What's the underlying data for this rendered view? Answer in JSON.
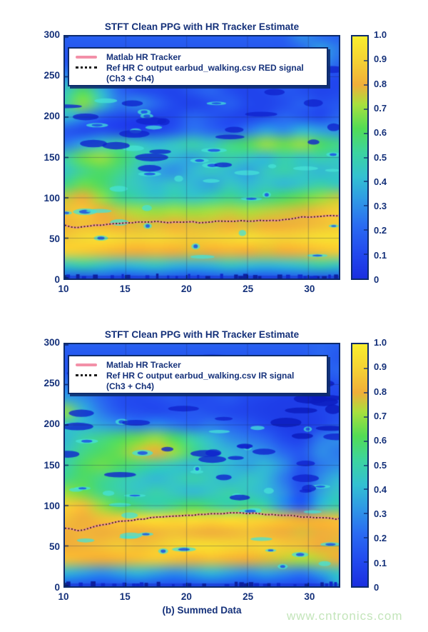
{
  "watermark": "www.cntronics.com",
  "caption": "(b) Summed Data",
  "style": {
    "text_color": "#15317a",
    "border_color": "#0d2b6b",
    "background": "#ffffff",
    "watermark_color": "#c3e5ba",
    "tracker_pink": "#f390a8",
    "tracker_dotted": "#2e1c08"
  },
  "colormap": [
    {
      "t": 0.0,
      "c": "#1a2fe0"
    },
    {
      "t": 0.1,
      "c": "#2148ee"
    },
    {
      "t": 0.22,
      "c": "#2a6cf2"
    },
    {
      "t": 0.32,
      "c": "#2f97e6"
    },
    {
      "t": 0.42,
      "c": "#33c0d2"
    },
    {
      "t": 0.52,
      "c": "#3cd4a0"
    },
    {
      "t": 0.62,
      "c": "#52dc55"
    },
    {
      "t": 0.72,
      "c": "#a8e03e"
    },
    {
      "t": 0.8,
      "c": "#f0ae3a"
    },
    {
      "t": 0.9,
      "c": "#f4d234"
    },
    {
      "t": 1.0,
      "c": "#f9ee2d"
    }
  ],
  "chart_data": [
    {
      "type": "heatmap",
      "title": "STFT Clean PPG with HR Tracker Estimate",
      "legend": [
        "Matlab HR Tracker",
        "Ref HR C output earbud_walking.csv RED signal",
        "(Ch3 + Ch4)"
      ],
      "xlim": [
        10,
        32.5
      ],
      "ylim": [
        0,
        300
      ],
      "xticks": [
        10,
        15,
        20,
        25,
        30
      ],
      "yticks": [
        300,
        250,
        200,
        150,
        100,
        50,
        0
      ],
      "colorbar_ticks": [
        "1.0",
        "0.9",
        "0.8",
        "0.7",
        "0.6",
        "0.5",
        "0.4",
        "0.3",
        "0.2",
        "0.1",
        "0"
      ],
      "colorbar_range": [
        0,
        1
      ],
      "grid": true,
      "values": [
        [
          0.18,
          0.18,
          0.18,
          0.18,
          0.18,
          0.18,
          0.18,
          0.18,
          0.18,
          0.18,
          0.18,
          0.18,
          0.18,
          0.3,
          0.22,
          0.18
        ],
        [
          0.15,
          0.15,
          0.15,
          0.15,
          0.15,
          0.15,
          0.15,
          0.15,
          0.15,
          0.15,
          0.15,
          0.15,
          0.15,
          0.2,
          0.35,
          0.25
        ],
        [
          0.15,
          0.15,
          0.15,
          0.15,
          0.15,
          0.15,
          0.15,
          0.15,
          0.15,
          0.15,
          0.15,
          0.15,
          0.15,
          0.18,
          0.3,
          0.2
        ],
        [
          0.3,
          0.25,
          0.2,
          0.15,
          0.12,
          0.15,
          0.18,
          0.15,
          0.12,
          0.1,
          0.12,
          0.15,
          0.18,
          0.15,
          0.12,
          0.1
        ],
        [
          0.45,
          0.6,
          0.4,
          0.2,
          0.12,
          0.1,
          0.08,
          0.15,
          0.2,
          0.12,
          0.08,
          0.1,
          0.15,
          0.12,
          0.08,
          0.1
        ],
        [
          0.5,
          0.68,
          0.45,
          0.25,
          0.3,
          0.2,
          0.1,
          0.07,
          0.12,
          0.18,
          0.1,
          0.08,
          0.12,
          0.18,
          0.12,
          0.15
        ],
        [
          0.4,
          0.3,
          0.15,
          0.1,
          0.07,
          0.07,
          0.1,
          0.2,
          0.15,
          0.1,
          0.08,
          0.12,
          0.2,
          0.15,
          0.1,
          0.2
        ],
        [
          0.15,
          0.1,
          0.12,
          0.08,
          0.06,
          0.08,
          0.15,
          0.25,
          0.2,
          0.15,
          0.25,
          0.35,
          0.3,
          0.4,
          0.35,
          0.3
        ],
        [
          0.25,
          0.35,
          0.45,
          0.5,
          0.45,
          0.4,
          0.45,
          0.5,
          0.45,
          0.55,
          0.6,
          0.7,
          0.65,
          0.7,
          0.6,
          0.55
        ],
        [
          0.5,
          0.65,
          0.7,
          0.6,
          0.5,
          0.45,
          0.4,
          0.35,
          0.45,
          0.5,
          0.45,
          0.4,
          0.5,
          0.45,
          0.5,
          0.45
        ],
        [
          0.45,
          0.55,
          0.6,
          0.55,
          0.45,
          0.35,
          0.3,
          0.4,
          0.45,
          0.4,
          0.35,
          0.45,
          0.5,
          0.45,
          0.4,
          0.45
        ],
        [
          0.55,
          0.65,
          0.6,
          0.5,
          0.45,
          0.4,
          0.45,
          0.4,
          0.35,
          0.45,
          0.4,
          0.45,
          0.4,
          0.45,
          0.5,
          0.45
        ],
        [
          0.75,
          0.8,
          0.7,
          0.55,
          0.5,
          0.45,
          0.5,
          0.45,
          0.5,
          0.55,
          0.5,
          0.55,
          0.6,
          0.65,
          0.7,
          0.75
        ],
        [
          0.85,
          0.88,
          0.8,
          0.75,
          0.72,
          0.7,
          0.72,
          0.7,
          0.72,
          0.74,
          0.72,
          0.74,
          0.76,
          0.78,
          0.85,
          0.9
        ],
        [
          0.82,
          0.85,
          0.82,
          0.8,
          0.78,
          0.78,
          0.8,
          0.78,
          0.78,
          0.8,
          0.78,
          0.8,
          0.8,
          0.82,
          0.85,
          0.88
        ],
        [
          0.88,
          0.92,
          0.95,
          0.92,
          0.9,
          0.92,
          0.9,
          0.88,
          0.9,
          0.92,
          0.95,
          0.92,
          0.9,
          0.92,
          0.95,
          0.95
        ],
        [
          0.9,
          0.88,
          0.85,
          0.82,
          0.8,
          0.82,
          0.8,
          0.78,
          0.8,
          0.82,
          0.8,
          0.78,
          0.8,
          0.82,
          0.85,
          0.88
        ],
        [
          0.45,
          0.5,
          0.45,
          0.4,
          0.42,
          0.45,
          0.4,
          0.38,
          0.4,
          0.45,
          0.42,
          0.4,
          0.42,
          0.45,
          0.5,
          0.45
        ],
        [
          0.15,
          0.12,
          0.15,
          0.1,
          0.12,
          0.15,
          0.12,
          0.1,
          0.12,
          0.15,
          0.12,
          0.1,
          0.12,
          0.15,
          0.12,
          0.15
        ]
      ],
      "tracker_x": [
        10,
        11,
        12,
        13,
        14,
        15,
        16,
        17,
        18,
        19,
        20,
        21,
        22,
        23,
        24,
        25,
        26,
        27,
        28,
        29,
        30,
        31,
        32,
        32.5
      ],
      "tracker_y": [
        66,
        63,
        65,
        66,
        68,
        69,
        70,
        70,
        70,
        70,
        70,
        69,
        70,
        71,
        71,
        71,
        72,
        72,
        73,
        75,
        76,
        77,
        78,
        78
      ]
    },
    {
      "type": "heatmap",
      "title": "STFT Clean PPG with HR Tracker Estimate",
      "legend": [
        "Matlab HR Tracker",
        "Ref HR C output earbud_walking.csv IR signal",
        "(Ch3 + Ch4)"
      ],
      "xlim": [
        10,
        32.5
      ],
      "ylim": [
        0,
        300
      ],
      "xticks": [
        10,
        15,
        20,
        25,
        30
      ],
      "yticks": [
        300,
        250,
        200,
        150,
        100,
        50,
        0
      ],
      "colorbar_ticks": [
        "1.0",
        "0.9",
        "0.8",
        "0.7",
        "0.6",
        "0.5",
        "0.4",
        "0.3",
        "0.2",
        "0.1",
        "0"
      ],
      "colorbar_range": [
        0,
        1
      ],
      "grid": true,
      "values": [
        [
          0.18,
          0.18,
          0.18,
          0.18,
          0.18,
          0.18,
          0.18,
          0.18,
          0.18,
          0.18,
          0.18,
          0.18,
          0.18,
          0.18,
          0.2,
          0.18
        ],
        [
          0.15,
          0.15,
          0.15,
          0.15,
          0.15,
          0.15,
          0.15,
          0.15,
          0.15,
          0.15,
          0.15,
          0.15,
          0.15,
          0.15,
          0.2,
          0.15
        ],
        [
          0.15,
          0.15,
          0.15,
          0.15,
          0.15,
          0.15,
          0.15,
          0.15,
          0.15,
          0.15,
          0.15,
          0.15,
          0.12,
          0.1,
          0.15,
          0.2
        ],
        [
          0.25,
          0.2,
          0.15,
          0.12,
          0.15,
          0.12,
          0.1,
          0.15,
          0.12,
          0.1,
          0.12,
          0.15,
          0.1,
          0.08,
          0.1,
          0.12
        ],
        [
          0.35,
          0.3,
          0.2,
          0.12,
          0.1,
          0.12,
          0.15,
          0.1,
          0.12,
          0.15,
          0.1,
          0.08,
          0.06,
          0.06,
          0.08,
          0.1
        ],
        [
          0.7,
          0.4,
          0.25,
          0.15,
          0.12,
          0.1,
          0.12,
          0.15,
          0.12,
          0.1,
          0.08,
          0.06,
          0.05,
          0.06,
          0.08,
          0.12
        ],
        [
          0.45,
          0.4,
          0.35,
          0.3,
          0.25,
          0.3,
          0.25,
          0.2,
          0.25,
          0.2,
          0.15,
          0.1,
          0.06,
          0.05,
          0.08,
          0.15
        ],
        [
          0.4,
          0.5,
          0.55,
          0.6,
          0.65,
          0.7,
          0.6,
          0.5,
          0.4,
          0.3,
          0.25,
          0.2,
          0.1,
          0.08,
          0.25,
          0.3
        ],
        [
          0.45,
          0.55,
          0.6,
          0.65,
          0.75,
          0.8,
          0.7,
          0.55,
          0.45,
          0.4,
          0.35,
          0.3,
          0.2,
          0.15,
          0.3,
          0.25
        ],
        [
          0.5,
          0.6,
          0.65,
          0.6,
          0.55,
          0.5,
          0.45,
          0.4,
          0.45,
          0.4,
          0.35,
          0.4,
          0.3,
          0.12,
          0.25,
          0.3
        ],
        [
          0.55,
          0.6,
          0.55,
          0.5,
          0.45,
          0.4,
          0.45,
          0.5,
          0.45,
          0.4,
          0.45,
          0.4,
          0.25,
          0.1,
          0.3,
          0.4
        ],
        [
          0.7,
          0.65,
          0.55,
          0.5,
          0.45,
          0.5,
          0.45,
          0.4,
          0.45,
          0.5,
          0.45,
          0.4,
          0.3,
          0.12,
          0.35,
          0.45
        ],
        [
          0.9,
          0.85,
          0.7,
          0.6,
          0.55,
          0.5,
          0.55,
          0.6,
          0.55,
          0.5,
          0.55,
          0.5,
          0.3,
          0.15,
          0.4,
          0.5
        ],
        [
          0.85,
          0.8,
          0.85,
          0.88,
          0.92,
          0.95,
          0.92,
          0.95,
          0.92,
          0.95,
          0.92,
          0.9,
          0.85,
          0.8,
          0.82,
          0.85
        ],
        [
          0.8,
          0.82,
          0.8,
          0.82,
          0.8,
          0.82,
          0.85,
          0.82,
          0.8,
          0.82,
          0.85,
          0.82,
          0.8,
          0.78,
          0.8,
          0.82
        ],
        [
          0.8,
          0.82,
          0.85,
          0.88,
          0.85,
          0.88,
          0.92,
          0.95,
          0.95,
          0.92,
          0.9,
          0.92,
          0.88,
          0.85,
          0.8,
          0.78
        ],
        [
          0.85,
          0.82,
          0.8,
          0.82,
          0.85,
          0.88,
          0.85,
          0.82,
          0.85,
          0.82,
          0.8,
          0.78,
          0.75,
          0.72,
          0.75,
          0.8
        ],
        [
          0.4,
          0.35,
          0.3,
          0.35,
          0.4,
          0.35,
          0.3,
          0.35,
          0.4,
          0.35,
          0.3,
          0.35,
          0.3,
          0.25,
          0.35,
          0.45
        ],
        [
          0.15,
          0.12,
          0.1,
          0.12,
          0.15,
          0.12,
          0.1,
          0.12,
          0.15,
          0.12,
          0.1,
          0.12,
          0.1,
          0.08,
          0.12,
          0.4
        ]
      ],
      "tracker_x": [
        10,
        11,
        12,
        13,
        14,
        15,
        16,
        17,
        18,
        19,
        20,
        21,
        22,
        23,
        24,
        25,
        26,
        27,
        28,
        29,
        30,
        31,
        32,
        32.5
      ],
      "tracker_y": [
        72,
        69,
        72,
        76,
        79,
        81,
        83,
        85,
        86,
        87,
        88,
        89,
        90,
        90,
        91,
        90,
        90,
        89,
        88,
        87,
        86,
        85,
        84,
        84
      ]
    }
  ]
}
